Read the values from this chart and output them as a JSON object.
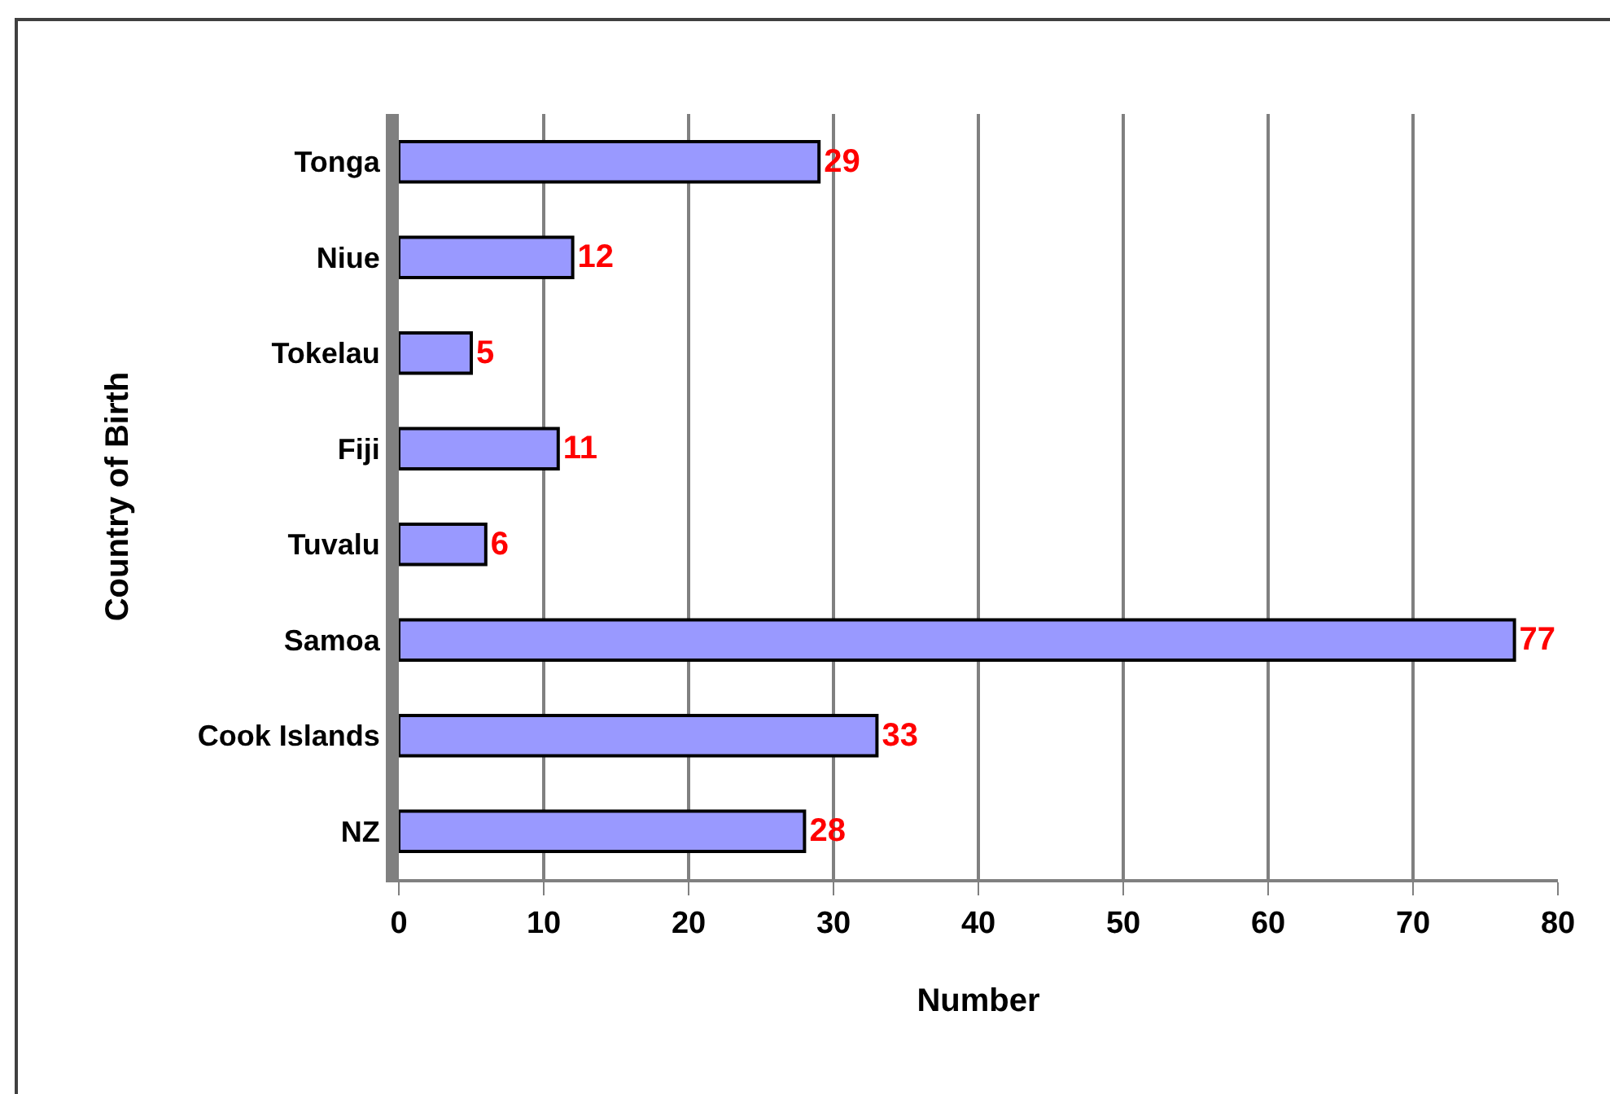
{
  "chart_data": {
    "type": "bar",
    "orientation": "horizontal",
    "xlabel": "Number",
    "ylabel": "Country of Birth",
    "categories": [
      "Tonga",
      "Niue",
      "Tokelau",
      "Fiji",
      "Tuvalu",
      "Samoa",
      "Cook Islands",
      "NZ"
    ],
    "values": [
      29,
      12,
      5,
      11,
      6,
      77,
      33,
      28
    ],
    "color": "#9999ff",
    "xlim": [
      0,
      80
    ],
    "xticks": [
      0,
      10,
      20,
      30,
      40,
      50,
      60,
      70,
      80
    ],
    "grid": "x",
    "data_labels": true
  }
}
